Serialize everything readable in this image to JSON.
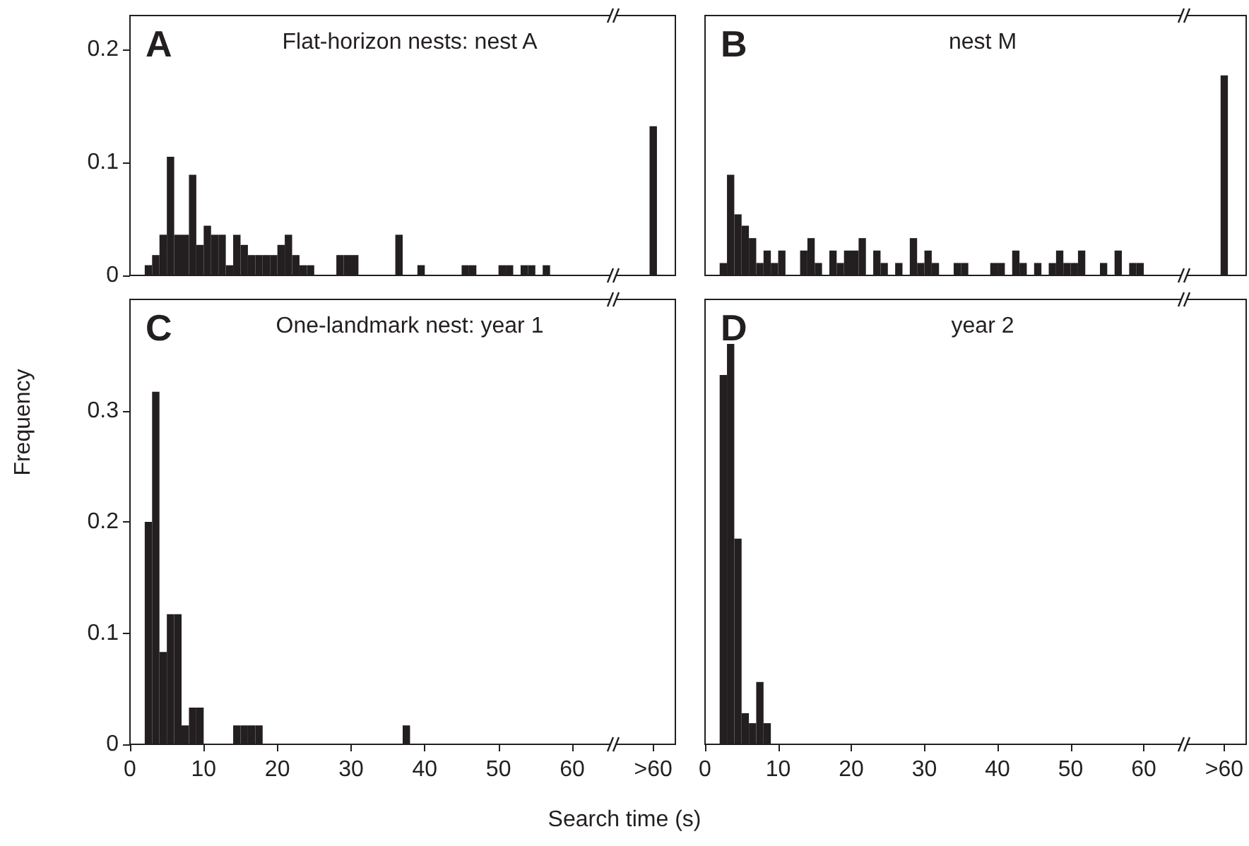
{
  "chart_data": [
    {
      "type": "histogram",
      "title": "A",
      "subtitle": "Flat-horizon nests: nest A",
      "bins": [
        2,
        3,
        4,
        5,
        6,
        7,
        8,
        9,
        10,
        11,
        12,
        13,
        14,
        15,
        16,
        17,
        18,
        19,
        20,
        21,
        22,
        23,
        24,
        25,
        28,
        29,
        30,
        31,
        36,
        37,
        39,
        40,
        45,
        46,
        47,
        50,
        51,
        52,
        53,
        54,
        55,
        56,
        57,
        70.5,
        71.5
      ],
      "values": [
        0.009,
        0.018,
        0.036,
        0.105,
        0.036,
        0.036,
        0.089,
        0.027,
        0.044,
        0.036,
        0.036,
        0.009,
        0.036,
        0.027,
        0.018,
        0.018,
        0.018,
        0.018,
        0.027,
        0.036,
        0.018,
        0.009,
        0.009,
        0,
        0.018,
        0.018,
        0.018,
        0,
        0.036,
        0,
        0.009,
        0,
        0.009,
        0.009,
        0,
        0.009,
        0.009,
        0,
        0.009,
        0.009,
        0,
        0.009,
        0,
        0.132
      ],
      "color": "#231f20",
      "xlim": [
        0,
        74
      ],
      "ylim": [
        0,
        0.23
      ],
      "yticks": [
        0,
        0.1,
        0.2
      ],
      "tick_labels": "y"
    },
    {
      "type": "histogram",
      "title": "B",
      "subtitle": "nest M",
      "bins": [
        2,
        3,
        4,
        5,
        6,
        7,
        8,
        9,
        10,
        11,
        13,
        14,
        15,
        16,
        17,
        18,
        19,
        20,
        21,
        22,
        23,
        24,
        25,
        26,
        27,
        28,
        29,
        30,
        31,
        32,
        34,
        35,
        36,
        39,
        40,
        41,
        42,
        43,
        44,
        45,
        46,
        47,
        48,
        49,
        50,
        51,
        52,
        54,
        55,
        56,
        57,
        58,
        59,
        60,
        70.5,
        71.5
      ],
      "values": [
        0.011,
        0.089,
        0.054,
        0.044,
        0.033,
        0.011,
        0.022,
        0.011,
        0.022,
        0,
        0.022,
        0.033,
        0.011,
        0,
        0.022,
        0.011,
        0.022,
        0.022,
        0.033,
        0,
        0.022,
        0.011,
        0,
        0.011,
        0,
        0.033,
        0.011,
        0.022,
        0.011,
        0,
        0.011,
        0.011,
        0,
        0.011,
        0.011,
        0,
        0.022,
        0.011,
        0,
        0.011,
        0,
        0.011,
        0.022,
        0.011,
        0.011,
        0.022,
        0,
        0.011,
        0,
        0.022,
        0,
        0.011,
        0.011,
        0,
        0.177
      ],
      "color": "#231f20",
      "xlim": [
        0,
        74
      ],
      "ylim": [
        0,
        0.23
      ],
      "yticks": [
        0,
        0.1,
        0.2
      ],
      "tick_labels": false
    },
    {
      "type": "histogram",
      "title": "C",
      "subtitle": "One-landmark nest: year 1",
      "xlabel": "Search time (s)",
      "ylabel": "Frequency",
      "bins": [
        2,
        3,
        4,
        5,
        6,
        7,
        8,
        9,
        10,
        14,
        15,
        16,
        17,
        18,
        37,
        38
      ],
      "values": [
        0.2,
        0.317,
        0.083,
        0.117,
        0.117,
        0.017,
        0.033,
        0.033,
        0,
        0.017,
        0.017,
        0.017,
        0.017,
        0,
        0.017
      ],
      "color": "#231f20",
      "xlim": [
        0,
        74
      ],
      "ylim": [
        0,
        0.4
      ],
      "xticks": [
        0,
        10,
        20,
        30,
        40,
        50,
        60,
        {
          "value": 71,
          "label": ">60"
        }
      ],
      "yticks": [
        0,
        0.1,
        0.2,
        0.3
      ]
    },
    {
      "type": "histogram",
      "title": "D",
      "subtitle": "year 2",
      "bins": [
        2,
        3,
        4,
        5,
        6,
        7,
        8,
        9
      ],
      "values": [
        0.332,
        0.36,
        0.185,
        0.028,
        0.019,
        0.056,
        0.019
      ],
      "color": "#231f20",
      "xlim": [
        0,
        74
      ],
      "ylim": [
        0,
        0.4
      ],
      "xticks": [
        0,
        10,
        20,
        30,
        40,
        50,
        60,
        {
          "value": 71,
          "label": ">60"
        }
      ],
      "yticks": [
        0,
        0.1,
        0.2,
        0.3
      ],
      "tick_labels": "x"
    }
  ]
}
